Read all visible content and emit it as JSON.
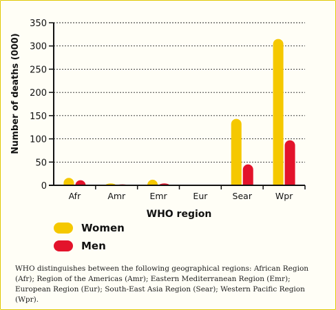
{
  "chart_data": {
    "type": "bar",
    "title": "",
    "xlabel": "WHO region",
    "ylabel": "Number of deaths (000)",
    "categories": [
      "Afr",
      "Amr",
      "Emr",
      "Eur",
      "Sear",
      "Wpr"
    ],
    "ylim": [
      0,
      350
    ],
    "yticks": [
      "0",
      "50",
      "100",
      "150",
      "200",
      "250",
      "300",
      "350"
    ],
    "grid": true,
    "legend_position": "bottom-left",
    "series": [
      {
        "name": "Women",
        "color": "#f5c800",
        "values": [
          16,
          4,
          12,
          1,
          143,
          315
        ]
      },
      {
        "name": "Men",
        "color": "#e3132b",
        "values": [
          11,
          2,
          4,
          0,
          45,
          97
        ]
      }
    ]
  },
  "caption": "WHO distinguishes between the following geographical regions: African Region (Afr); Region of the Americas (Amr); Eastern Mediterranean Region (Emr); European Region (Eur); South-East Asia Region (Sear); Western Pacific Region (Wpr)."
}
